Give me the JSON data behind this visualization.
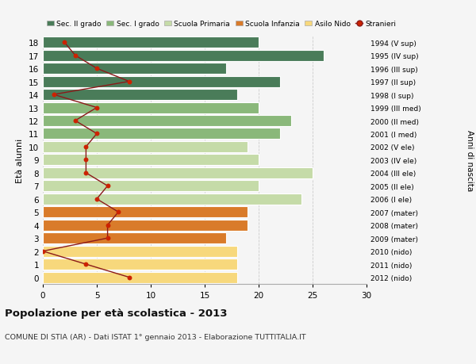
{
  "ages": [
    18,
    17,
    16,
    15,
    14,
    13,
    12,
    11,
    10,
    9,
    8,
    7,
    6,
    5,
    4,
    3,
    2,
    1,
    0
  ],
  "years": [
    "1994 (V sup)",
    "1995 (IV sup)",
    "1996 (III sup)",
    "1997 (II sup)",
    "1998 (I sup)",
    "1999 (III med)",
    "2000 (II med)",
    "2001 (I med)",
    "2002 (V ele)",
    "2003 (IV ele)",
    "2004 (III ele)",
    "2005 (II ele)",
    "2006 (I ele)",
    "2007 (mater)",
    "2008 (mater)",
    "2009 (mater)",
    "2010 (nido)",
    "2011 (nido)",
    "2012 (nido)"
  ],
  "bar_values": [
    20,
    26,
    17,
    22,
    18,
    20,
    23,
    22,
    19,
    20,
    25,
    20,
    24,
    19,
    19,
    17,
    18,
    18,
    18
  ],
  "bar_colors": [
    "#4a7c59",
    "#4a7c59",
    "#4a7c59",
    "#4a7c59",
    "#4a7c59",
    "#8ab87a",
    "#8ab87a",
    "#8ab87a",
    "#c5dba8",
    "#c5dba8",
    "#c5dba8",
    "#c5dba8",
    "#c5dba8",
    "#d97b2a",
    "#d97b2a",
    "#d97b2a",
    "#f7d87c",
    "#f7d87c",
    "#f7d87c"
  ],
  "stranieri_values": [
    2,
    3,
    5,
    8,
    1,
    5,
    3,
    5,
    4,
    4,
    4,
    6,
    5,
    7,
    6,
    6,
    0,
    4,
    8
  ],
  "legend_labels": [
    "Sec. II grado",
    "Sec. I grado",
    "Scuola Primaria",
    "Scuola Infanzia",
    "Asilo Nido",
    "Stranieri"
  ],
  "legend_colors": [
    "#4a7c59",
    "#8ab87a",
    "#c5dba8",
    "#d97b2a",
    "#f7d87c",
    "#cc0000"
  ],
  "title": "Popolazione per età scolastica - 2013",
  "subtitle": "COMUNE DI STIA (AR) - Dati ISTAT 1° gennaio 2013 - Elaborazione TUTTITALIA.IT",
  "ylabel_left": "Età alunni",
  "ylabel_right": "Anni di nascita",
  "xlim": [
    0,
    30
  ],
  "xticks": [
    0,
    5,
    10,
    15,
    20,
    25,
    30
  ],
  "bg_color": "#f5f5f5",
  "plot_bg_color": "#f5f5f5",
  "bar_edge_color": "white",
  "grid_color": "#cccccc",
  "stranieri_line_color": "#8b1a1a",
  "stranieri_dot_color": "#cc2200"
}
